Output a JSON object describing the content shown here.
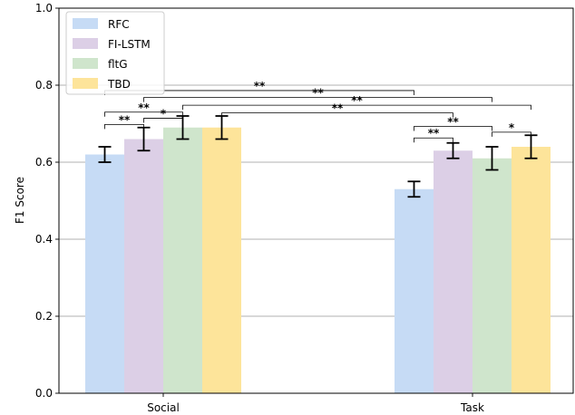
{
  "chart_data": {
    "type": "bar",
    "title": "",
    "xlabel": "",
    "ylabel": "F1 Score",
    "ylim": [
      0.0,
      1.0
    ],
    "yticks": [
      "0.0",
      "0.2",
      "0.4",
      "0.6",
      "0.8",
      "1.0"
    ],
    "grid": "horizontal",
    "legend_position": "top-left",
    "categories": [
      "Social",
      "Task"
    ],
    "series": [
      {
        "name": "RFC",
        "color": "#c6dbf5",
        "values": [
          0.62,
          0.53
        ],
        "err": [
          0.02,
          0.02
        ]
      },
      {
        "name": "FI-LSTM",
        "color": "#dccfe6",
        "values": [
          0.66,
          0.63
        ],
        "err": [
          0.03,
          0.02
        ]
      },
      {
        "name": "fltG",
        "color": "#cfe5cc",
        "values": [
          0.69,
          0.61
        ],
        "err": [
          0.03,
          0.03
        ]
      },
      {
        "name": "TBD",
        "color": "#fde49a",
        "values": [
          0.69,
          0.64
        ],
        "err": [
          0.03,
          0.03
        ]
      }
    ],
    "significance": [
      {
        "from": [
          0,
          0
        ],
        "to": [
          0,
          1
        ],
        "y": 0.698,
        "label": "**"
      },
      {
        "from": [
          0,
          0
        ],
        "to": [
          0,
          2
        ],
        "y": 0.73,
        "label": "**"
      },
      {
        "from": [
          0,
          1
        ],
        "to": [
          0,
          2
        ],
        "y": 0.714,
        "label": "*"
      },
      {
        "from": [
          0,
          0
        ],
        "to": [
          1,
          0
        ],
        "y": 0.786,
        "label": "**"
      },
      {
        "from": [
          0,
          1
        ],
        "to": [
          1,
          2
        ],
        "y": 0.768,
        "label": "**"
      },
      {
        "from": [
          0,
          2
        ],
        "to": [
          1,
          3
        ],
        "y": 0.748,
        "label": "**"
      },
      {
        "from": [
          0,
          3
        ],
        "to": [
          1,
          1
        ],
        "y": 0.728,
        "label": "**"
      },
      {
        "from": [
          1,
          0
        ],
        "to": [
          1,
          1
        ],
        "y": 0.663,
        "label": "**"
      },
      {
        "from": [
          1,
          0
        ],
        "to": [
          1,
          2
        ],
        "y": 0.693,
        "label": "**"
      },
      {
        "from": [
          1,
          2
        ],
        "to": [
          1,
          3
        ],
        "y": 0.678,
        "label": "*"
      }
    ]
  }
}
